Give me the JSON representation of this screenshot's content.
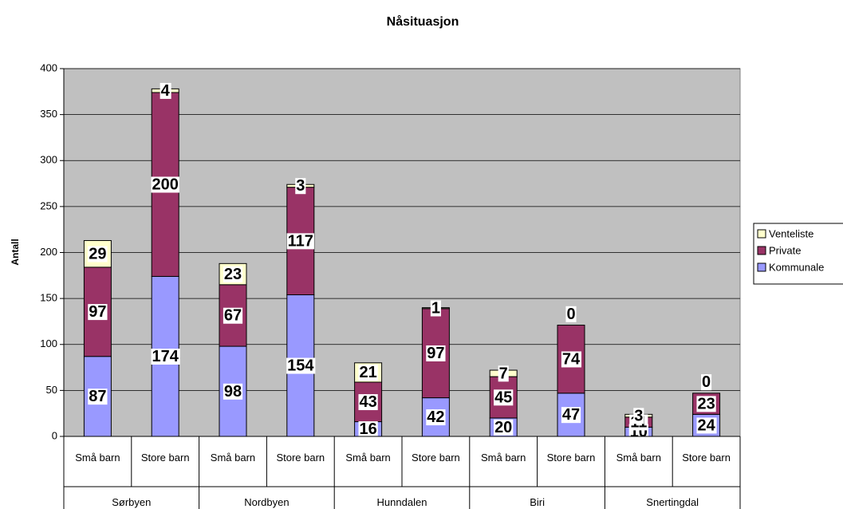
{
  "chart_data": {
    "type": "stacked_bar",
    "title": "Nåsituasjon",
    "y_label": "Antall",
    "categories": [
      "Små barn",
      "Store barn",
      "Små barn",
      "Store barn",
      "Små barn",
      "Store barn",
      "Små barn",
      "Store barn",
      "Små barn",
      "Store barn"
    ],
    "groups": [
      "Sørbyen",
      "Nordbyen",
      "Hunndalen",
      "Biri",
      "Snertingdal"
    ],
    "series": [
      {
        "name": "Kommunale",
        "color": "#9999ff",
        "values": [
          87,
          174,
          98,
          154,
          16,
          42,
          20,
          47,
          10,
          24
        ]
      },
      {
        "name": "Private",
        "color": "#993366",
        "values": [
          97,
          200,
          67,
          117,
          43,
          97,
          45,
          74,
          11,
          23
        ]
      },
      {
        "name": "Venteliste",
        "color": "#ffffcc",
        "values": [
          29,
          4,
          23,
          3,
          21,
          1,
          7,
          0,
          3,
          0
        ]
      }
    ],
    "ylim": [
      0,
      400
    ],
    "yticks": [
      0,
      50,
      100,
      150,
      200,
      250,
      300,
      350,
      400
    ],
    "grid": true,
    "legend": "right"
  }
}
